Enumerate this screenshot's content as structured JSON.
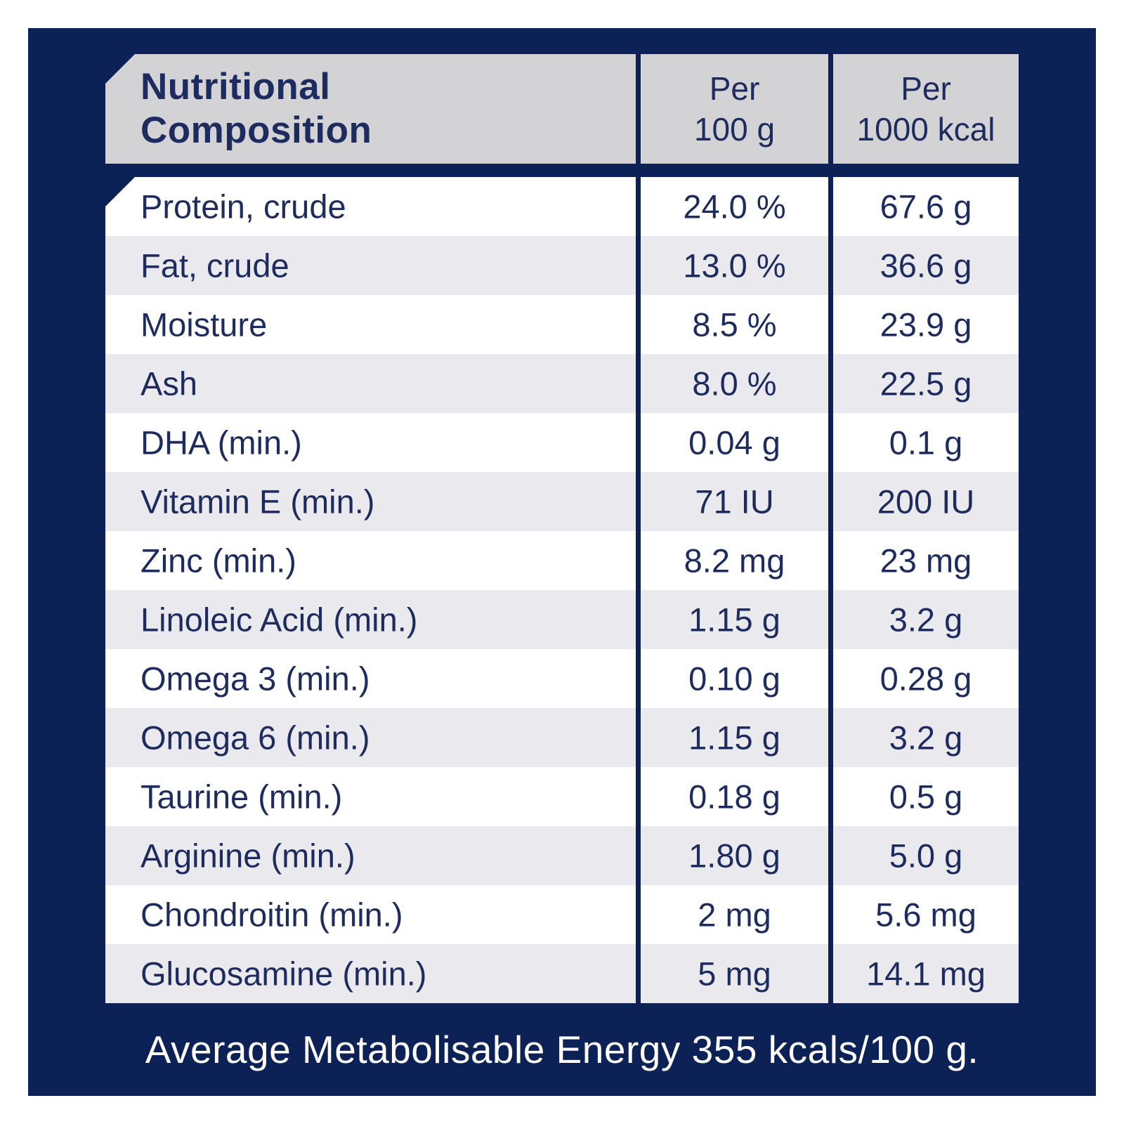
{
  "table": {
    "header": {
      "title_line1": "Nutritional",
      "title_line2": "Composition",
      "col1_line1": "Per",
      "col1_line2": "100 g",
      "col2_line1": "Per",
      "col2_line2": "1000 kcal"
    },
    "rows": [
      {
        "label": "Protein, crude",
        "per_100g": "24.0 %",
        "per_1000kcal": "67.6 g"
      },
      {
        "label": "Fat, crude",
        "per_100g": "13.0 %",
        "per_1000kcal": "36.6 g"
      },
      {
        "label": "Moisture",
        "per_100g": "8.5 %",
        "per_1000kcal": "23.9 g"
      },
      {
        "label": "Ash",
        "per_100g": "8.0 %",
        "per_1000kcal": "22.5 g"
      },
      {
        "label": "DHA (min.)",
        "per_100g": "0.04 g",
        "per_1000kcal": "0.1 g"
      },
      {
        "label": "Vitamin E (min.)",
        "per_100g": "71 IU",
        "per_1000kcal": "200 IU"
      },
      {
        "label": "Zinc (min.)",
        "per_100g": "8.2 mg",
        "per_1000kcal": "23 mg"
      },
      {
        "label": "Linoleic Acid (min.)",
        "per_100g": "1.15 g",
        "per_1000kcal": "3.2 g"
      },
      {
        "label": "Omega 3 (min.)",
        "per_100g": "0.10 g",
        "per_1000kcal": "0.28 g"
      },
      {
        "label": "Omega 6 (min.)",
        "per_100g": "1.15 g",
        "per_1000kcal": "3.2 g"
      },
      {
        "label": "Taurine (min.)",
        "per_100g": "0.18 g",
        "per_1000kcal": "0.5 g"
      },
      {
        "label": "Arginine (min.)",
        "per_100g": "1.80 g",
        "per_1000kcal": "5.0 g"
      },
      {
        "label": "Chondroitin (min.)",
        "per_100g": "2 mg",
        "per_1000kcal": "5.6 mg"
      },
      {
        "label": "Glucosamine (min.)",
        "per_100g": "5 mg",
        "per_1000kcal": "14.1 mg"
      }
    ],
    "footer_note": "Average Metabolisable Energy 355 kcals/100 g."
  },
  "colors": {
    "panel_navy": "#0c2155",
    "header_gray": "#d3d3d5",
    "row_gray": "#eaeaee",
    "row_white": "#ffffff",
    "text_navy": "#1d2b5f",
    "footer_white": "#ffffff"
  }
}
